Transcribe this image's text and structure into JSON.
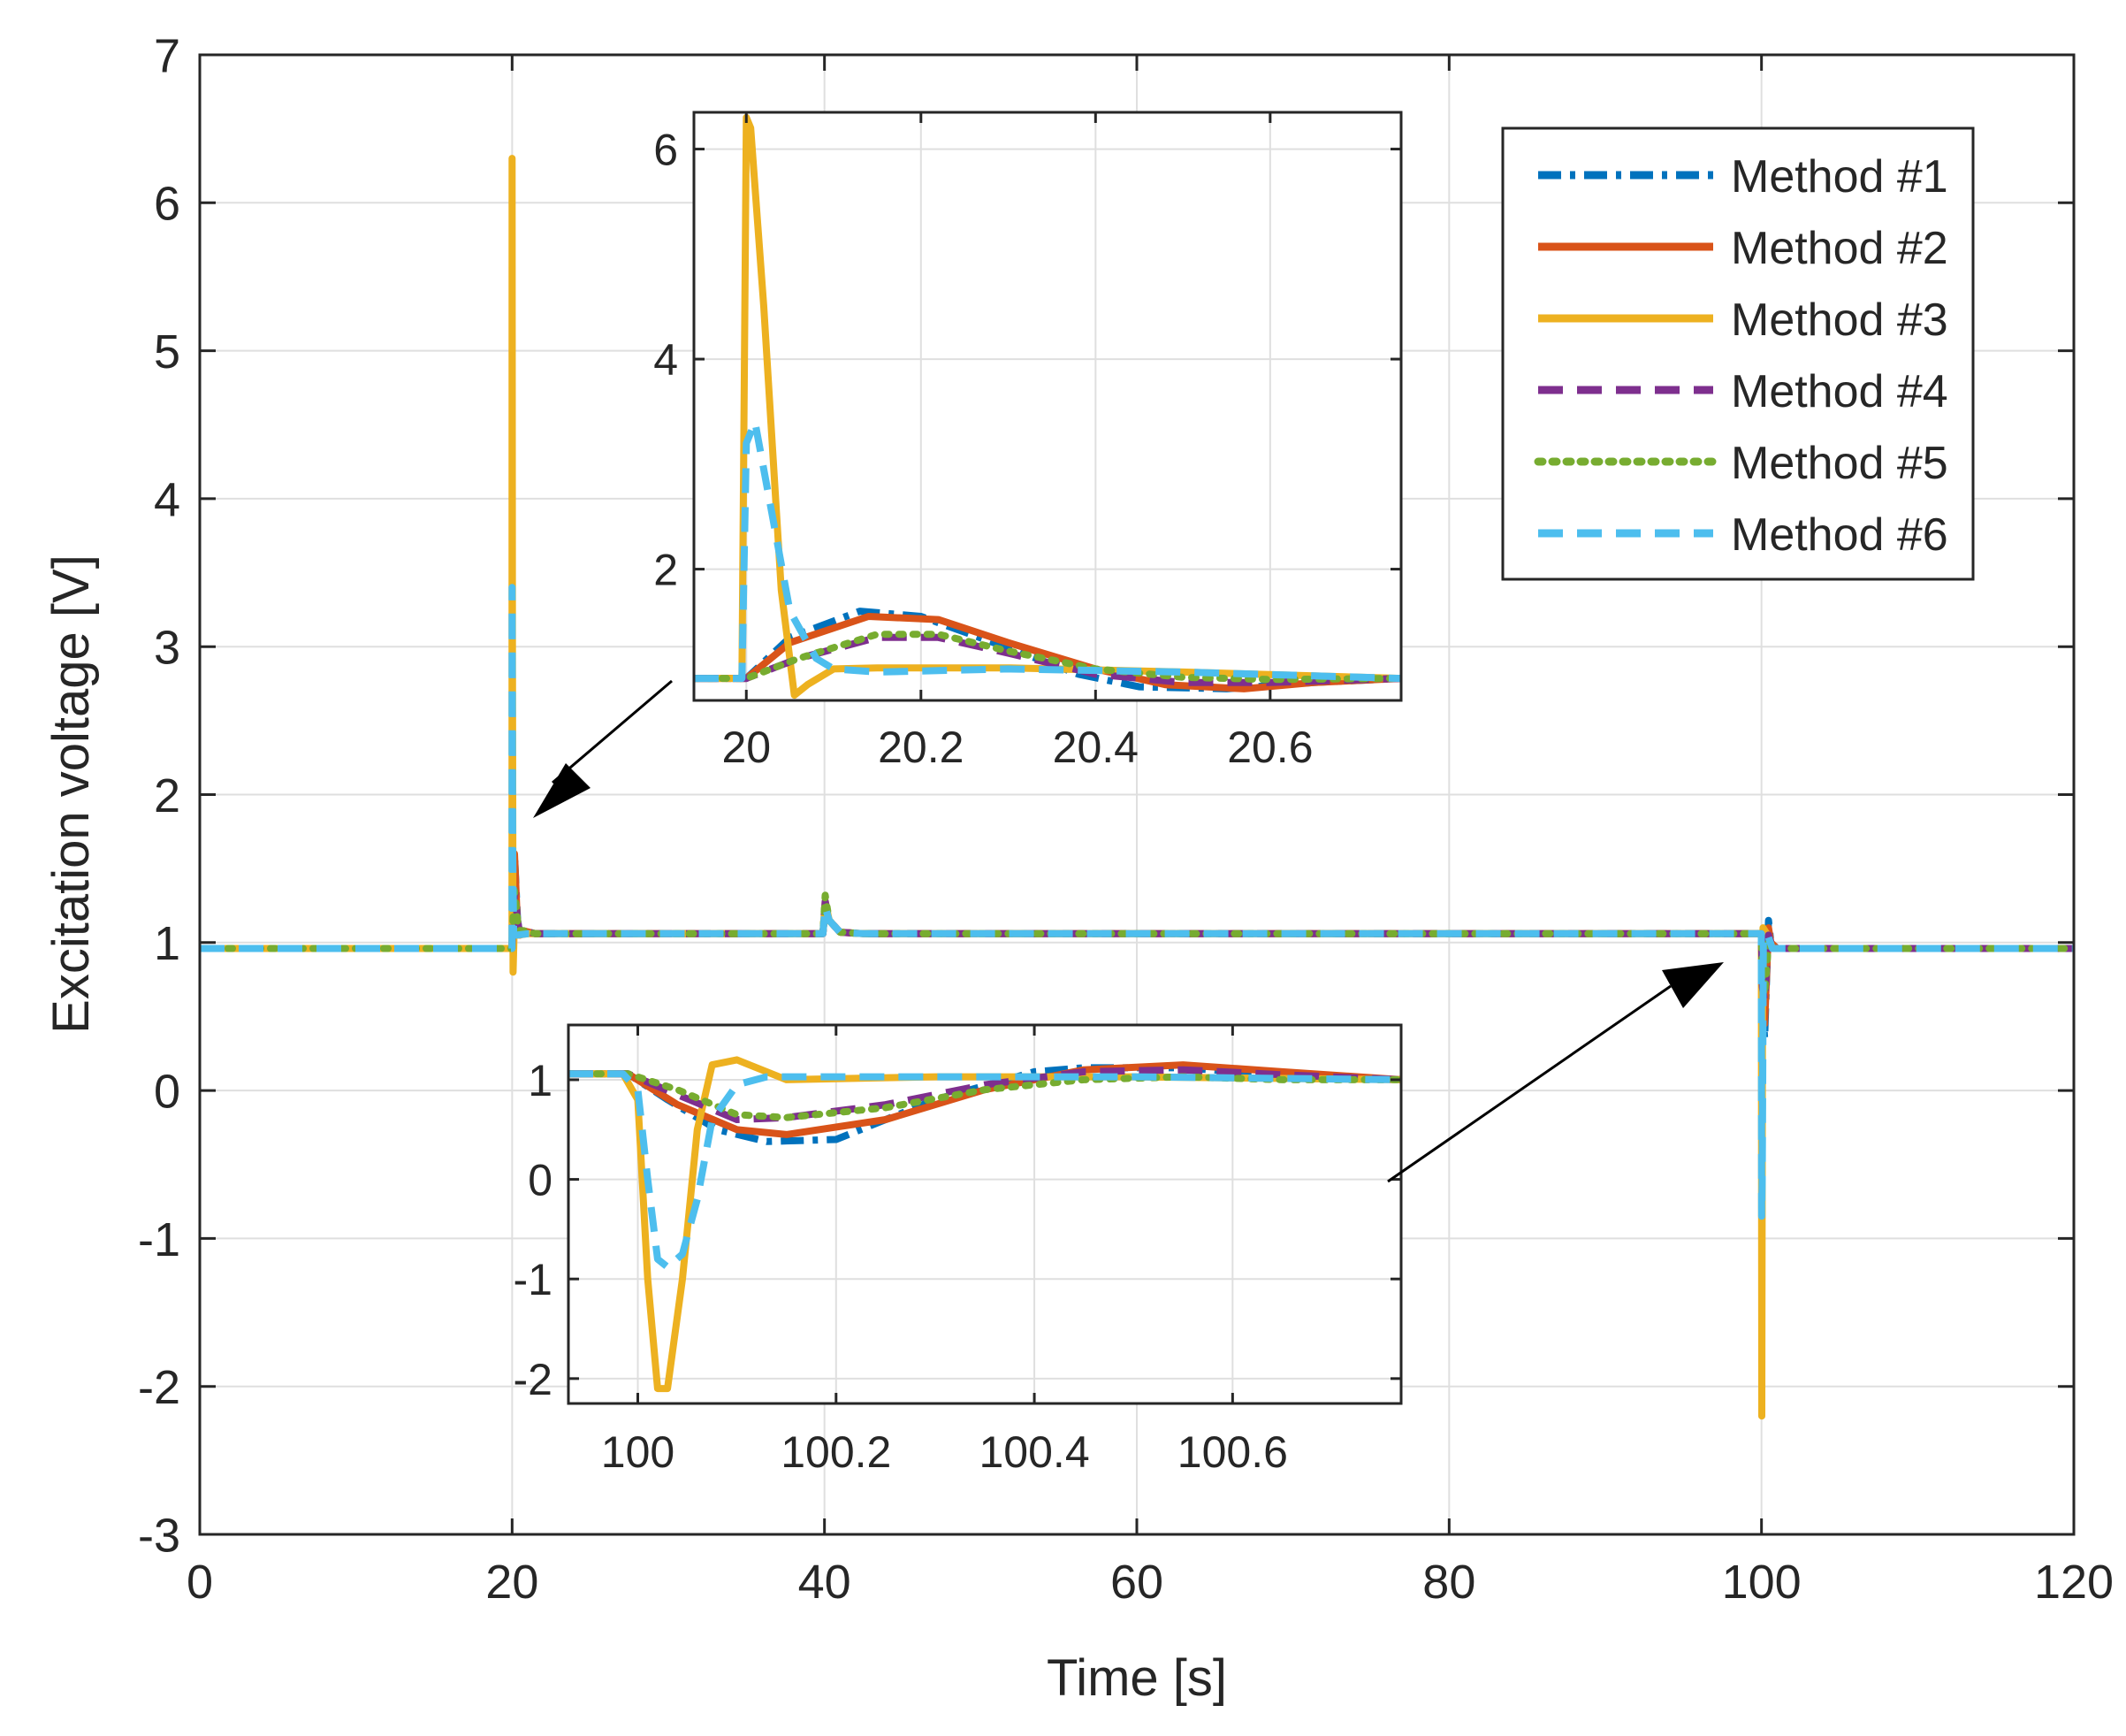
{
  "chart_data": [
    {
      "id": "main",
      "type": "line",
      "title": "",
      "xlabel": "Time [s]",
      "ylabel": "Excitation voltage [V]",
      "xlim": [
        0,
        120
      ],
      "ylim": [
        -3,
        7
      ],
      "xticks": [
        0,
        20,
        40,
        60,
        80,
        100,
        120
      ],
      "yticks": [
        -3,
        -2,
        -1,
        0,
        1,
        2,
        3,
        4,
        5,
        6,
        7
      ],
      "grid": true,
      "legend_position": "top-right",
      "series": [
        {
          "name": "Method #1",
          "color": "#0072BD",
          "style": "dashdot",
          "x": [
            0,
            19.99,
            20.03,
            20.15,
            20.35,
            20.5,
            20.7,
            21.5,
            39.9,
            40.05,
            40.3,
            41,
            42.5,
            99.99,
            100.06,
            100.2,
            100.45,
            100.6,
            101,
            120
          ],
          "y": [
            0.96,
            0.96,
            1.15,
            1.6,
            1.15,
            1.05,
            1.08,
            1.06,
            1.06,
            1.24,
            1.15,
            1.07,
            1.06,
            1.06,
            0.6,
            0.35,
            1.15,
            1.0,
            0.96,
            0.96
          ]
        },
        {
          "name": "Method #2",
          "color": "#D95319",
          "style": "solid",
          "x": [
            0,
            19.99,
            20.03,
            20.15,
            20.35,
            20.5,
            20.7,
            21.5,
            39.9,
            40.05,
            40.3,
            41,
            42.5,
            99.99,
            100.06,
            100.2,
            100.45,
            100.6,
            101,
            120
          ],
          "y": [
            0.96,
            0.96,
            1.15,
            1.6,
            1.1,
            1.05,
            1.08,
            1.06,
            1.06,
            1.24,
            1.15,
            1.07,
            1.06,
            1.06,
            0.6,
            0.45,
            1.1,
            1.0,
            0.96,
            0.96
          ]
        },
        {
          "name": "Method #3",
          "color": "#EDB120",
          "style": "solid",
          "x": [
            0,
            19.99,
            20.0,
            20.02,
            20.06,
            20.12,
            20.4,
            21.0,
            39.9,
            40.05,
            40.3,
            41,
            42.5,
            99.99,
            100.02,
            100.06,
            100.1,
            100.4,
            100.7,
            120
          ],
          "y": [
            0.96,
            0.96,
            6.3,
            3.0,
            0.8,
            1.05,
            1.05,
            1.06,
            1.06,
            1.28,
            1.15,
            1.07,
            1.06,
            1.06,
            -2.2,
            0.3,
            1.1,
            1.05,
            0.96,
            0.96
          ]
        },
        {
          "name": "Method #4",
          "color": "#7E2F8E",
          "style": "dashed",
          "x": [
            0,
            19.99,
            20.03,
            20.15,
            20.35,
            20.5,
            20.7,
            21.5,
            39.9,
            40.05,
            40.3,
            41,
            42.5,
            99.99,
            100.06,
            100.2,
            100.45,
            100.6,
            101,
            120
          ],
          "y": [
            0.96,
            0.96,
            1.1,
            1.35,
            1.15,
            1.05,
            1.08,
            1.06,
            1.06,
            1.28,
            1.15,
            1.07,
            1.06,
            1.06,
            0.7,
            0.6,
            1.05,
            1.0,
            0.96,
            0.96
          ]
        },
        {
          "name": "Method #5",
          "color": "#77AC30",
          "style": "dotted",
          "x": [
            0,
            19.99,
            20.03,
            20.15,
            20.35,
            20.5,
            20.7,
            21.5,
            39.9,
            40.05,
            40.3,
            41,
            42.5,
            99.99,
            100.06,
            100.2,
            100.45,
            100.6,
            101,
            120
          ],
          "y": [
            0.96,
            0.96,
            1.1,
            1.35,
            1.15,
            1.08,
            1.08,
            1.06,
            1.06,
            1.32,
            1.15,
            1.07,
            1.06,
            1.06,
            0.75,
            0.65,
            1.0,
            1.0,
            0.96,
            0.96
          ]
        },
        {
          "name": "Method #6",
          "color": "#4DBEEE",
          "style": "dashed",
          "x": [
            0,
            19.99,
            20.0,
            20.04,
            20.1,
            20.3,
            21.0,
            39.9,
            40.05,
            40.3,
            41,
            42.5,
            99.99,
            100.01,
            100.05,
            100.12,
            100.4,
            100.7,
            120
          ],
          "y": [
            0.96,
            0.96,
            3.4,
            1.6,
            1.05,
            1.05,
            1.06,
            1.06,
            1.24,
            1.15,
            1.07,
            1.06,
            1.06,
            -0.85,
            -0.6,
            1.05,
            1.05,
            0.96,
            0.96
          ]
        }
      ]
    },
    {
      "id": "inset1",
      "type": "line",
      "xlim": [
        19.94,
        20.75
      ],
      "ylim": [
        0.75,
        6.35
      ],
      "xticks": [
        20,
        20.2,
        20.4,
        20.6
      ],
      "xticklabels": [
        "20",
        "20.2",
        "20.4",
        "20.6"
      ],
      "yticks": [
        2,
        4,
        6
      ],
      "grid": true,
      "series": [
        {
          "name": "Method #1",
          "x": [
            19.94,
            20.0,
            20.05,
            20.13,
            20.2,
            20.3,
            20.38,
            20.45,
            20.55,
            20.65,
            20.75
          ],
          "y": [
            0.96,
            0.96,
            1.35,
            1.6,
            1.55,
            1.25,
            1.0,
            0.88,
            0.86,
            0.92,
            0.96
          ]
        },
        {
          "name": "Method #2",
          "x": [
            19.94,
            20.0,
            20.05,
            20.14,
            20.22,
            20.3,
            20.4,
            20.48,
            20.57,
            20.65,
            20.75
          ],
          "y": [
            0.96,
            0.96,
            1.3,
            1.55,
            1.52,
            1.3,
            1.05,
            0.9,
            0.86,
            0.92,
            0.96
          ]
        },
        {
          "name": "Method #3",
          "x": [
            19.94,
            19.995,
            20.0,
            20.005,
            20.02,
            20.04,
            20.055,
            20.07,
            20.1,
            20.15,
            20.3,
            20.5,
            20.75
          ],
          "y": [
            0.96,
            0.96,
            6.3,
            6.2,
            4.5,
            1.8,
            0.8,
            0.9,
            1.05,
            1.06,
            1.06,
            1.02,
            0.96
          ]
        },
        {
          "name": "Method #4",
          "x": [
            19.94,
            20.0,
            20.06,
            20.15,
            20.22,
            20.3,
            20.4,
            20.5,
            20.6,
            20.75
          ],
          "y": [
            0.96,
            0.96,
            1.15,
            1.35,
            1.35,
            1.2,
            1.0,
            0.92,
            0.92,
            0.96
          ]
        },
        {
          "name": "Method #5",
          "x": [
            19.94,
            20.0,
            20.06,
            20.15,
            20.22,
            20.3,
            20.4,
            20.5,
            20.6,
            20.75
          ],
          "y": [
            0.96,
            0.96,
            1.15,
            1.38,
            1.38,
            1.22,
            1.05,
            0.97,
            0.95,
            0.96
          ]
        },
        {
          "name": "Method #6",
          "x": [
            19.94,
            19.995,
            20.0,
            20.01,
            20.03,
            20.05,
            20.08,
            20.1,
            20.15,
            20.3,
            20.5,
            20.75
          ],
          "y": [
            0.96,
            0.96,
            3.2,
            3.4,
            2.5,
            1.6,
            1.15,
            1.05,
            1.02,
            1.05,
            1.02,
            0.96
          ]
        }
      ]
    },
    {
      "id": "inset2",
      "type": "line",
      "xlim": [
        99.93,
        100.77
      ],
      "ylim": [
        -2.25,
        1.55
      ],
      "xticks": [
        100,
        100.2,
        100.4,
        100.6
      ],
      "xticklabels": [
        "100",
        "100.2",
        "100.4",
        "100.6"
      ],
      "yticks": [
        -2,
        -1,
        0,
        1
      ],
      "grid": true,
      "series": [
        {
          "name": "Method #1",
          "x": [
            99.93,
            99.99,
            100.03,
            100.08,
            100.13,
            100.2,
            100.3,
            100.4,
            100.45,
            100.55,
            100.65,
            100.77
          ],
          "y": [
            1.06,
            1.06,
            0.8,
            0.5,
            0.38,
            0.4,
            0.8,
            1.08,
            1.12,
            1.12,
            1.05,
            1.0
          ]
        },
        {
          "name": "Method #2",
          "x": [
            99.93,
            99.99,
            100.04,
            100.1,
            100.15,
            100.25,
            100.35,
            100.45,
            100.55,
            100.65,
            100.77
          ],
          "y": [
            1.06,
            1.06,
            0.75,
            0.5,
            0.45,
            0.6,
            0.9,
            1.1,
            1.15,
            1.08,
            1.0
          ]
        },
        {
          "name": "Method #3",
          "x": [
            99.93,
            99.985,
            100.0,
            100.01,
            100.02,
            100.03,
            100.045,
            100.06,
            100.075,
            100.1,
            100.15,
            100.3,
            100.5,
            100.77
          ],
          "y": [
            1.06,
            1.06,
            0.8,
            -1.0,
            -2.1,
            -2.1,
            -1.0,
            0.5,
            1.15,
            1.2,
            1.0,
            1.03,
            1.03,
            1.0
          ]
        },
        {
          "name": "Method #4",
          "x": [
            99.93,
            99.99,
            100.04,
            100.1,
            100.15,
            100.25,
            100.35,
            100.45,
            100.55,
            100.65,
            100.77
          ],
          "y": [
            1.06,
            1.06,
            0.85,
            0.6,
            0.62,
            0.75,
            0.95,
            1.08,
            1.1,
            1.05,
            1.0
          ]
        },
        {
          "name": "Method #5",
          "x": [
            99.93,
            99.99,
            100.04,
            100.1,
            100.15,
            100.25,
            100.35,
            100.45,
            100.55,
            100.65,
            100.77
          ],
          "y": [
            1.06,
            1.06,
            0.9,
            0.65,
            0.62,
            0.72,
            0.9,
            1.0,
            1.03,
            1.0,
            1.0
          ]
        },
        {
          "name": "Method #6",
          "x": [
            99.93,
            99.985,
            100.0,
            100.01,
            100.02,
            100.03,
            100.045,
            100.06,
            100.075,
            100.1,
            100.13,
            100.3,
            100.5,
            100.77
          ],
          "y": [
            1.06,
            1.06,
            0.9,
            0.0,
            -0.8,
            -0.88,
            -0.75,
            -0.2,
            0.6,
            0.95,
            1.03,
            1.03,
            1.03,
            1.0
          ]
        }
      ]
    }
  ]
}
